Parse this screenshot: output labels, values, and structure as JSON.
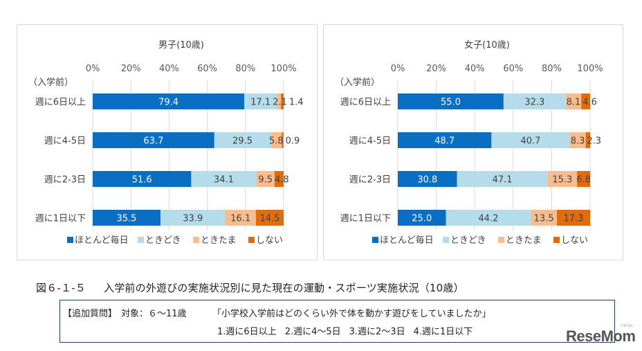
{
  "chart_data": [
    {
      "type": "bar",
      "orientation": "horizontal",
      "stacked": "percent",
      "title": "男子(10歳)",
      "ylabel": "（入学前）",
      "xlim": [
        0,
        100
      ],
      "x_ticks": [
        "0%",
        "20%",
        "40%",
        "60%",
        "80%",
        "100%"
      ],
      "grid": true,
      "legend_position": "bottom",
      "categories": [
        "週に6日以上",
        "週に4-5日",
        "週に2-3日",
        "週に1日以下"
      ],
      "series": [
        {
          "name": "ほとんど毎日",
          "color": "#0a6fc2",
          "label_color": "#ffffff",
          "values": [
            79.4,
            63.7,
            51.6,
            35.5
          ]
        },
        {
          "name": "ときどき",
          "color": "#b4dcea",
          "label_color": "#404040",
          "values": [
            17.1,
            29.5,
            34.1,
            33.9
          ]
        },
        {
          "name": "ときたま",
          "color": "#f9bc8f",
          "label_color": "#404040",
          "values": [
            2.1,
            5.8,
            9.5,
            16.1
          ]
        },
        {
          "name": "しない",
          "color": "#e36c0a",
          "label_color": "#404040",
          "values": [
            1.4,
            0.9,
            4.8,
            14.5
          ]
        }
      ]
    },
    {
      "type": "bar",
      "orientation": "horizontal",
      "stacked": "percent",
      "title": "女子(10歳)",
      "ylabel": "（入学前）",
      "xlim": [
        0,
        100
      ],
      "x_ticks": [
        "0%",
        "20%",
        "40%",
        "60%",
        "80%",
        "100%"
      ],
      "grid": true,
      "legend_position": "bottom",
      "categories": [
        "週に6日以上",
        "週に4-5日",
        "週に2-3日",
        "週に1日以下"
      ],
      "series": [
        {
          "name": "ほとんど毎日",
          "color": "#0a6fc2",
          "label_color": "#ffffff",
          "values": [
            55.0,
            48.7,
            30.8,
            25.0
          ]
        },
        {
          "name": "ときどき",
          "color": "#b4dcea",
          "label_color": "#404040",
          "values": [
            32.3,
            40.7,
            47.1,
            44.2
          ]
        },
        {
          "name": "ときたま",
          "color": "#f9bc8f",
          "label_color": "#404040",
          "values": [
            8.1,
            8.3,
            15.3,
            13.5
          ]
        },
        {
          "name": "しない",
          "color": "#e36c0a",
          "label_color": "#404040",
          "values": [
            4.6,
            2.3,
            6.8,
            17.3
          ]
        }
      ]
    }
  ],
  "caption": {
    "figure_number": "図６-１-５",
    "text": "入学前の外遊びの実施状況別に見た現在の運動・スポーツ実施状況（10歳）"
  },
  "question_box": {
    "tag": "【追加質問】",
    "target": "対象：６～11歳",
    "question": "「小学校入学前はどのくらい外で体を動かす遊びをしていましたか」",
    "options": [
      "1.週に6日以上",
      "2.週に4～5日",
      "3.週に2～3日",
      "4.週に1日以下"
    ]
  },
  "watermark": {
    "logo": "ReseMom",
    "kana": "リセマム"
  }
}
